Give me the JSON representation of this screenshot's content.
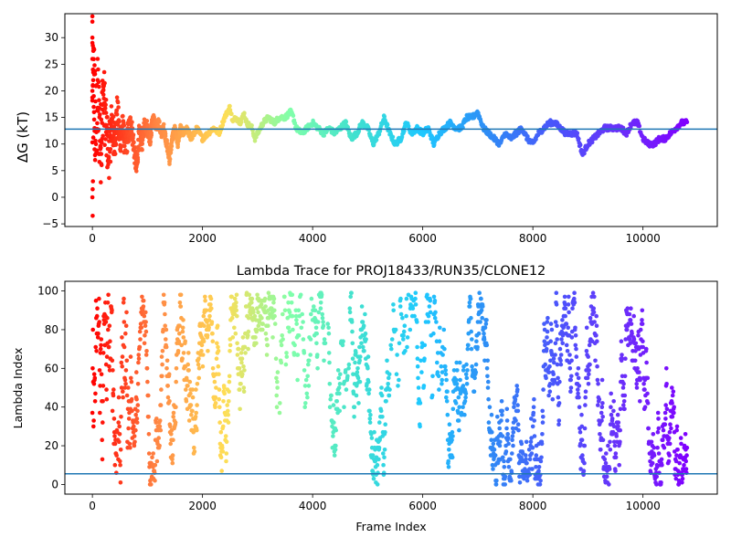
{
  "figure": {
    "background": "#ffffff",
    "colormap": "rainbow",
    "colormap_stops": [
      "#ff0000",
      "#ff8844",
      "#ffdd55",
      "#80ffaa",
      "#40e0d0",
      "#1ec8ff",
      "#2f8cf5",
      "#4a55fb",
      "#6a30fa",
      "#8000ff"
    ]
  },
  "chart_data": [
    {
      "type": "scatter",
      "title": "",
      "xlabel": "",
      "ylabel": "ΔG (kT)",
      "xlim": [
        -500,
        11350
      ],
      "ylim": [
        -5.5,
        34.5
      ],
      "xticks": [
        0,
        2000,
        4000,
        6000,
        8000,
        10000
      ],
      "xtick_labels": [
        "0",
        "2000",
        "4000",
        "6000",
        "8000",
        "10000"
      ],
      "yticks": [
        -5,
        0,
        5,
        10,
        15,
        20,
        25,
        30
      ],
      "ytick_labels": [
        "−5",
        "0",
        "5",
        "10",
        "15",
        "20",
        "25",
        "30"
      ],
      "grid": false,
      "legend": "none",
      "color_by": "frame index (rainbow colormap, red at 0 to violet at 10800)",
      "x_range": [
        0,
        10800
      ],
      "hline": {
        "y": 12.8,
        "color": "#1f77b4"
      },
      "trace": {
        "frames": [
          0,
          30,
          60,
          100,
          150,
          200,
          250,
          300,
          350,
          400,
          450,
          500,
          550,
          600,
          650,
          700,
          750,
          800,
          850,
          900,
          950,
          1000,
          1050,
          1100,
          1150,
          1200,
          1250,
          1300,
          1350,
          1400,
          1450,
          1500,
          1550,
          1600,
          1650,
          1700,
          1750,
          1800,
          1850,
          1900,
          1950,
          2000,
          2100,
          2200,
          2300,
          2400,
          2450,
          2500,
          2550,
          2600,
          2700,
          2750,
          2800,
          2900,
          2950,
          3000,
          3050,
          3100,
          3200,
          3300,
          3400,
          3500,
          3600,
          3650,
          3700,
          3800,
          3900,
          4000,
          4100,
          4200,
          4300,
          4400,
          4500,
          4600,
          4700,
          4800,
          4900,
          5000,
          5100,
          5200,
          5300,
          5400,
          5500,
          5600,
          5700,
          5800,
          5900,
          6000,
          6100,
          6200,
          6300,
          6400,
          6500,
          6600,
          6700,
          6800,
          6900,
          7000,
          7100,
          7200,
          7300,
          7400,
          7500,
          7600,
          7700,
          7800,
          7900,
          8000,
          8100,
          8200,
          8300,
          8400,
          8500,
          8600,
          8700,
          8800,
          8900,
          9000,
          9100,
          9200,
          9300,
          9400,
          9500,
          9600,
          9700,
          9800,
          9900,
          10000,
          10100,
          10200,
          10300,
          10400,
          10500,
          10600,
          10700,
          10800
        ],
        "delta_g_kT": [
          15,
          22,
          12,
          18,
          10,
          20,
          12,
          8,
          14,
          10,
          16,
          11,
          13,
          9,
          12,
          14,
          10,
          5,
          12,
          10,
          14,
          13,
          11,
          15,
          13,
          14,
          12,
          13,
          10,
          7,
          11,
          13,
          10,
          13,
          12,
          13,
          12,
          11,
          12,
          13,
          12,
          11,
          12,
          13,
          12,
          15,
          16,
          17,
          14,
          15,
          14,
          16,
          14,
          13,
          11,
          12,
          13,
          14,
          15,
          14,
          15,
          15,
          16,
          15,
          13,
          12,
          13,
          14,
          13,
          12,
          13,
          12,
          13,
          14,
          11,
          12,
          14,
          13,
          10,
          12,
          15,
          12,
          10,
          11,
          14,
          12,
          13,
          12,
          13,
          10,
          12,
          13,
          14,
          13,
          13,
          15,
          15,
          16,
          13,
          12,
          11,
          10,
          12,
          11,
          12,
          13,
          11,
          10,
          12,
          13,
          14,
          14,
          13,
          12,
          12,
          12,
          8,
          10,
          11,
          12,
          13,
          13,
          13,
          13,
          12,
          14,
          14,
          11,
          10,
          10,
          11,
          11,
          12,
          13,
          14,
          14
        ],
        "noise_band": [
          12,
          11,
          10,
          9,
          8,
          7,
          6,
          5,
          4.5,
          4,
          3.5,
          3,
          2.8,
          2.6,
          2.4,
          2.2,
          2,
          2,
          1.8,
          1.6,
          1.5,
          1.4,
          1.3,
          1.2,
          1.1,
          1,
          1,
          0.9,
          0.9,
          0.8,
          0.8,
          0.7,
          0.7,
          0.7,
          0.6,
          0.6,
          0.6,
          0.6,
          0.5,
          0.5,
          0.5,
          0.5,
          0.5,
          0.5,
          0.5,
          0.5,
          0.5,
          0.5,
          0.5,
          0.5,
          0.5,
          0.5,
          0.5,
          0.5,
          0.5,
          0.5,
          0.5,
          0.5,
          0.5,
          0.5,
          0.5,
          0.5,
          0.5,
          0.5,
          0.5,
          0.5,
          0.5,
          0.5,
          0.5,
          0.5,
          0.5,
          0.5,
          0.5,
          0.5,
          0.5,
          0.5,
          0.5,
          0.5,
          0.5,
          0.5,
          0.5,
          0.5,
          0.5,
          0.5,
          0.5,
          0.5,
          0.5,
          0.5,
          0.5,
          0.5,
          0.5,
          0.5,
          0.5,
          0.5,
          0.5,
          0.5,
          0.5,
          0.5,
          0.5,
          0.5,
          0.5,
          0.5,
          0.5,
          0.5,
          0.5,
          0.5,
          0.5,
          0.5,
          0.5,
          0.5,
          0.5,
          0.5,
          0.5,
          0.5,
          0.5,
          0.5,
          0.5,
          0.5,
          0.5,
          0.5,
          0.5,
          0.5,
          0.5,
          0.5,
          0.5,
          0.5,
          0.5,
          0.5,
          0.5,
          0.5,
          0.5,
          0.5,
          0.5,
          0.5,
          0.5,
          0.5
        ]
      },
      "early_outliers": {
        "frames": [
          0,
          0,
          0,
          0,
          0,
          0,
          0,
          5,
          5,
          10,
          10,
          15,
          20,
          25,
          30,
          40,
          50
        ],
        "delta_g_kT": [
          34,
          33,
          30,
          29,
          26,
          20,
          0,
          -3.5,
          1.5,
          3,
          24,
          22,
          28,
          19,
          16,
          9,
          7
        ]
      }
    },
    {
      "type": "scatter",
      "title": "Lambda Trace for PROJ18433/RUN35/CLONE12",
      "xlabel": "Frame Index",
      "ylabel": "Lambda Index",
      "xlim": [
        -500,
        11350
      ],
      "ylim": [
        -5,
        105
      ],
      "xticks": [
        0,
        2000,
        4000,
        6000,
        8000,
        10000
      ],
      "xtick_labels": [
        "0",
        "2000",
        "4000",
        "6000",
        "8000",
        "10000"
      ],
      "yticks": [
        0,
        20,
        40,
        60,
        80,
        100
      ],
      "ytick_labels": [
        "0",
        "20",
        "40",
        "60",
        "80",
        "100"
      ],
      "grid": false,
      "legend": "none",
      "color_by": "frame index (rainbow colormap, red at 0 to violet at 10800)",
      "x_range": [
        0,
        10800
      ],
      "lambda_range": [
        0,
        99
      ],
      "hline": {
        "y": 5.5,
        "color": "#1f77b4"
      },
      "sparse_bands": [
        {
          "x_range": [
            3300,
            4700
          ],
          "lambda_range": [
            45,
            100
          ]
        },
        {
          "x_range": [
            5200,
            6500
          ],
          "lambda_range": [
            50,
            100
          ]
        }
      ]
    }
  ]
}
